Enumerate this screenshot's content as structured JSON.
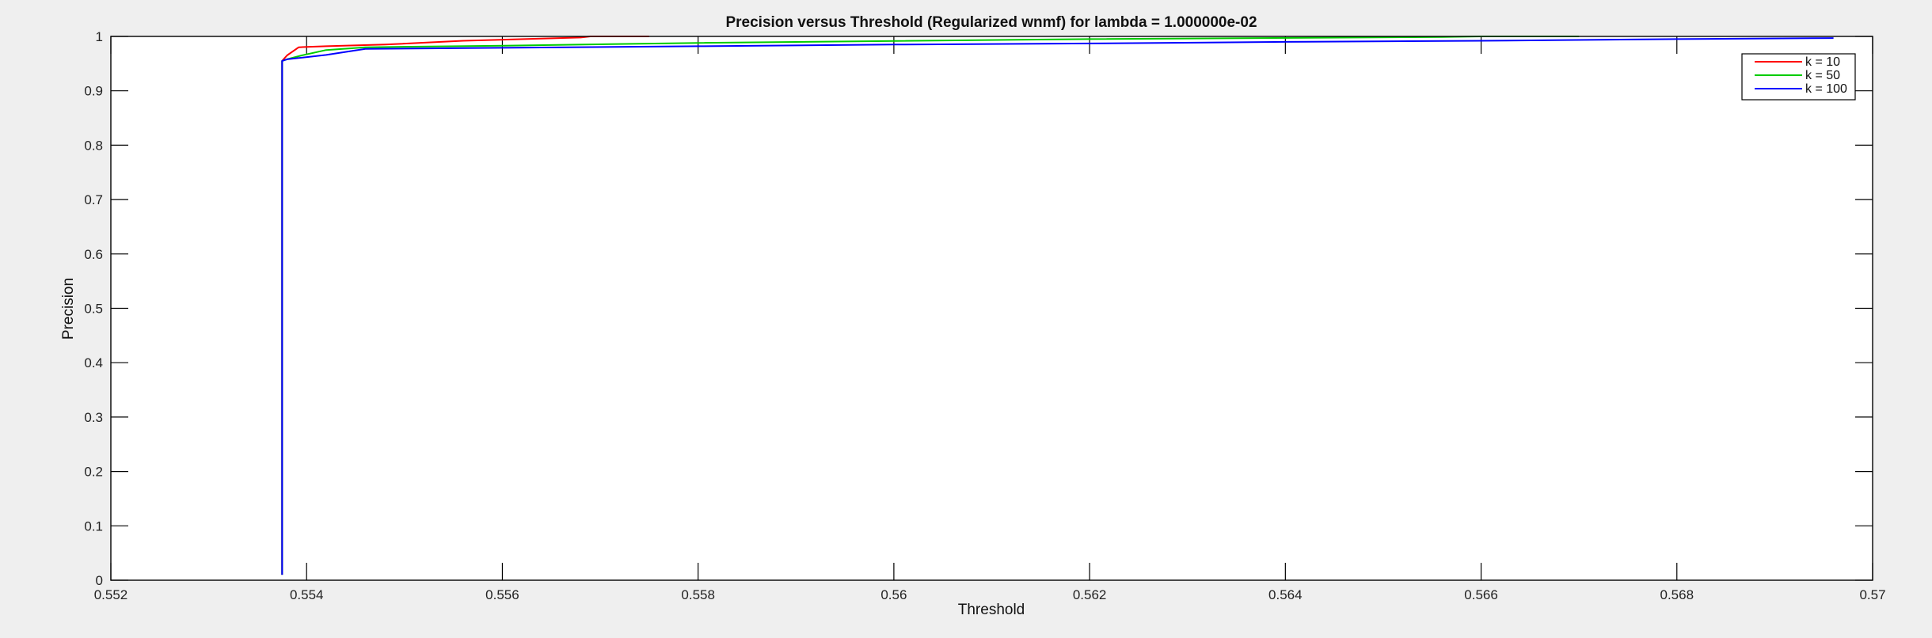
{
  "chart_data": {
    "type": "line",
    "title": "Precision versus Threshold (Regularized wnmf) for lambda = 1.000000e-02",
    "xlabel": "Threshold",
    "ylabel": "Precision",
    "xlim": [
      0.552,
      0.57
    ],
    "ylim": [
      0,
      1
    ],
    "grid": false,
    "legend_position": "top-right",
    "x_ticks": [
      {
        "value": 0.552,
        "label": "0.552"
      },
      {
        "value": 0.554,
        "label": "0.554"
      },
      {
        "value": 0.556,
        "label": "0.556"
      },
      {
        "value": 0.558,
        "label": "0.558"
      },
      {
        "value": 0.56,
        "label": "0.56"
      },
      {
        "value": 0.562,
        "label": "0.562"
      },
      {
        "value": 0.564,
        "label": "0.564"
      },
      {
        "value": 0.566,
        "label": "0.566"
      },
      {
        "value": 0.568,
        "label": "0.568"
      },
      {
        "value": 0.57,
        "label": "0.57"
      }
    ],
    "y_ticks": [
      {
        "value": 0,
        "label": "0"
      },
      {
        "value": 0.1,
        "label": "0.1"
      },
      {
        "value": 0.2,
        "label": "0.2"
      },
      {
        "value": 0.3,
        "label": "0.3"
      },
      {
        "value": 0.4,
        "label": "0.4"
      },
      {
        "value": 0.5,
        "label": "0.5"
      },
      {
        "value": 0.6,
        "label": "0.6"
      },
      {
        "value": 0.7,
        "label": "0.7"
      },
      {
        "value": 0.8,
        "label": "0.8"
      },
      {
        "value": 0.9,
        "label": "0.9"
      },
      {
        "value": 1,
        "label": "1"
      }
    ],
    "series": [
      {
        "name": "k = 10",
        "color": "#ff0000",
        "x": [
          0.55375,
          0.55375,
          0.5538,
          0.55392,
          0.5542,
          0.5548,
          0.5556,
          0.5568,
          0.5569,
          0.5575
        ],
        "y": [
          0.01,
          0.955,
          0.965,
          0.98,
          0.982,
          0.985,
          0.992,
          0.998,
          1.0,
          1.0
        ]
      },
      {
        "name": "k = 50",
        "color": "#00cc00",
        "x": [
          0.55375,
          0.55375,
          0.5538,
          0.55395,
          0.5542,
          0.5546,
          0.556,
          0.558,
          0.562,
          0.5656,
          0.566,
          0.567
        ],
        "y": [
          0.01,
          0.955,
          0.958,
          0.965,
          0.975,
          0.98,
          0.983,
          0.988,
          0.995,
          0.999,
          1.0,
          1.0
        ]
      },
      {
        "name": "k = 100",
        "color": "#0000ff",
        "x": [
          0.55375,
          0.55375,
          0.5538,
          0.5542,
          0.5546,
          0.556,
          0.558,
          0.56,
          0.562,
          0.564,
          0.566,
          0.568,
          0.5696
        ],
        "y": [
          0.01,
          0.955,
          0.958,
          0.966,
          0.977,
          0.979,
          0.982,
          0.985,
          0.987,
          0.99,
          0.992,
          0.995,
          0.997
        ]
      }
    ]
  }
}
